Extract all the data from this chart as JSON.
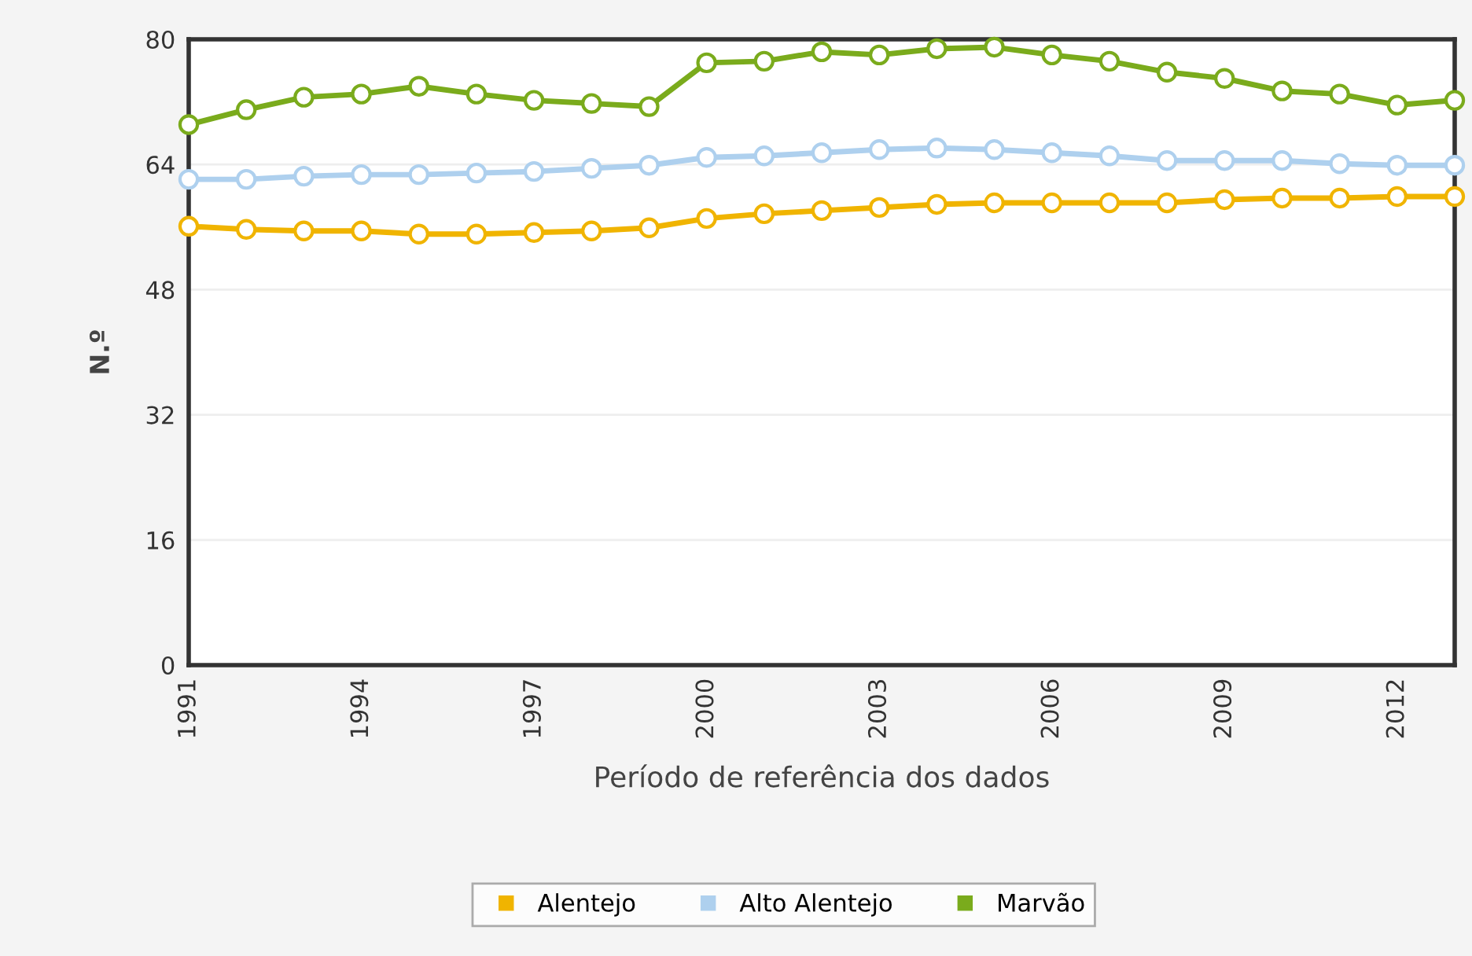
{
  "chart_data": {
    "type": "line",
    "xlabel": "Período de referência dos dados",
    "ylabel": "N.º",
    "x": [
      1991,
      1992,
      1993,
      1994,
      1995,
      1996,
      1997,
      1998,
      1999,
      2000,
      2001,
      2002,
      2003,
      2004,
      2005,
      2006,
      2007,
      2008,
      2009,
      2010,
      2011,
      2012,
      2013
    ],
    "series": [
      {
        "name": "Alentejo",
        "color": "#f0b400",
        "values": [
          56.1,
          55.7,
          55.5,
          55.5,
          55.1,
          55.1,
          55.3,
          55.5,
          55.9,
          57.1,
          57.7,
          58.1,
          58.5,
          58.9,
          59.1,
          59.1,
          59.1,
          59.1,
          59.5,
          59.7,
          59.7,
          59.9,
          59.9
        ]
      },
      {
        "name": "Alto Alentejo",
        "color": "#aed0ee",
        "values": [
          62.1,
          62.1,
          62.5,
          62.7,
          62.7,
          62.9,
          63.1,
          63.5,
          63.9,
          64.9,
          65.1,
          65.5,
          65.9,
          66.1,
          65.9,
          65.5,
          65.1,
          64.5,
          64.5,
          64.5,
          64.1,
          63.9,
          63.9
        ]
      },
      {
        "name": "Marvão",
        "color": "#7aab1c",
        "values": [
          69.1,
          71.0,
          72.6,
          73.0,
          74.0,
          73.0,
          72.2,
          71.8,
          71.4,
          77.0,
          77.2,
          78.4,
          78.0,
          78.8,
          79.0,
          78.0,
          77.2,
          75.8,
          75.0,
          73.4,
          73.0,
          71.6,
          72.2
        ]
      }
    ],
    "xlim": [
      1991,
      2013
    ],
    "xticks": [
      1991,
      1994,
      1997,
      2000,
      2003,
      2006,
      2009,
      2012
    ],
    "ylim": [
      0,
      80
    ],
    "yticks": [
      0,
      16,
      32,
      48,
      64,
      80
    ],
    "grid": "y",
    "legend": "bottom",
    "marker": "circle",
    "line_style": "solid"
  }
}
